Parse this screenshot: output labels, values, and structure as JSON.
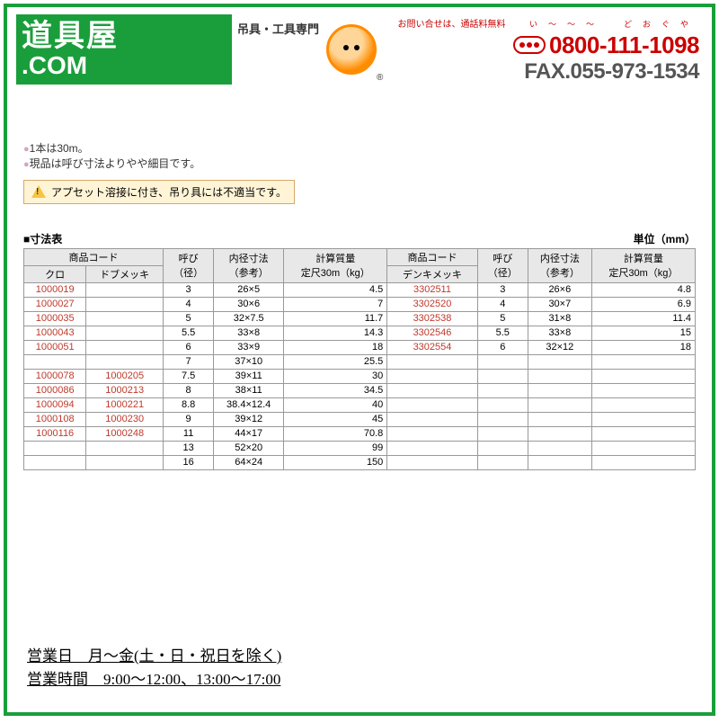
{
  "header": {
    "logo_line1": "道具屋",
    "logo_line2": ".COM",
    "subtitle": "吊具・工具専門",
    "registered": "®",
    "contact_label": "お問い合せは、通話料無料",
    "ruby": "い〜〜〜　どおぐや",
    "tel": "0800-111-1098",
    "fax": "FAX.055-973-1534"
  },
  "notes": {
    "n1": "1本は30m。",
    "n2": "現品は呼び寸法よりやや細目です。"
  },
  "warning": "アプセット溶接に付き、吊り具には不適当です。",
  "table": {
    "title": "■寸法表",
    "unit": "単位（mm）",
    "headers": {
      "code": "商品コード",
      "kuro": "クロ",
      "dobu": "ドブメッキ",
      "yobi": "呼び\n（径）",
      "naikei": "内径寸法\n（参考）",
      "mass": "計算質量\n定尺30m（kg）",
      "denki": "デンキメッキ"
    },
    "rows": [
      {
        "kuro": "1000019",
        "dobu": "",
        "yobi": "3",
        "naikei": "26×5",
        "mass": "4.5",
        "denki": "3302511",
        "yobi2": "3",
        "naikei2": "26×6",
        "mass2": "4.8"
      },
      {
        "kuro": "1000027",
        "dobu": "",
        "yobi": "4",
        "naikei": "30×6",
        "mass": "7",
        "denki": "3302520",
        "yobi2": "4",
        "naikei2": "30×7",
        "mass2": "6.9"
      },
      {
        "kuro": "1000035",
        "dobu": "",
        "yobi": "5",
        "naikei": "32×7.5",
        "mass": "11.7",
        "denki": "3302538",
        "yobi2": "5",
        "naikei2": "31×8",
        "mass2": "11.4"
      },
      {
        "kuro": "1000043",
        "dobu": "",
        "yobi": "5.5",
        "naikei": "33×8",
        "mass": "14.3",
        "denki": "3302546",
        "yobi2": "5.5",
        "naikei2": "33×8",
        "mass2": "15"
      },
      {
        "kuro": "1000051",
        "dobu": "",
        "yobi": "6",
        "naikei": "33×9",
        "mass": "18",
        "denki": "3302554",
        "yobi2": "6",
        "naikei2": "32×12",
        "mass2": "18"
      },
      {
        "kuro": "",
        "dobu": "",
        "yobi": "7",
        "naikei": "37×10",
        "mass": "25.5",
        "denki": "",
        "yobi2": "",
        "naikei2": "",
        "mass2": ""
      },
      {
        "kuro": "1000078",
        "dobu": "1000205",
        "yobi": "7.5",
        "naikei": "39×11",
        "mass": "30",
        "denki": "",
        "yobi2": "",
        "naikei2": "",
        "mass2": ""
      },
      {
        "kuro": "1000086",
        "dobu": "1000213",
        "yobi": "8",
        "naikei": "38×11",
        "mass": "34.5",
        "denki": "",
        "yobi2": "",
        "naikei2": "",
        "mass2": ""
      },
      {
        "kuro": "1000094",
        "dobu": "1000221",
        "yobi": "8.8",
        "naikei": "38.4×12.4",
        "mass": "40",
        "denki": "",
        "yobi2": "",
        "naikei2": "",
        "mass2": ""
      },
      {
        "kuro": "1000108",
        "dobu": "1000230",
        "yobi": "9",
        "naikei": "39×12",
        "mass": "45",
        "denki": "",
        "yobi2": "",
        "naikei2": "",
        "mass2": ""
      },
      {
        "kuro": "1000116",
        "dobu": "1000248",
        "yobi": "11",
        "naikei": "44×17",
        "mass": "70.8",
        "denki": "",
        "yobi2": "",
        "naikei2": "",
        "mass2": ""
      },
      {
        "kuro": "",
        "dobu": "",
        "yobi": "13",
        "naikei": "52×20",
        "mass": "99",
        "denki": "",
        "yobi2": "",
        "naikei2": "",
        "mass2": ""
      },
      {
        "kuro": "",
        "dobu": "",
        "yobi": "16",
        "naikei": "64×24",
        "mass": "150",
        "denki": "",
        "yobi2": "",
        "naikei2": "",
        "mass2": ""
      }
    ]
  },
  "footer": {
    "days": "営業日　月～金(土・日・祝日を除く)",
    "hours": "営業時間　9:00～12:00、13:00～17:00"
  }
}
